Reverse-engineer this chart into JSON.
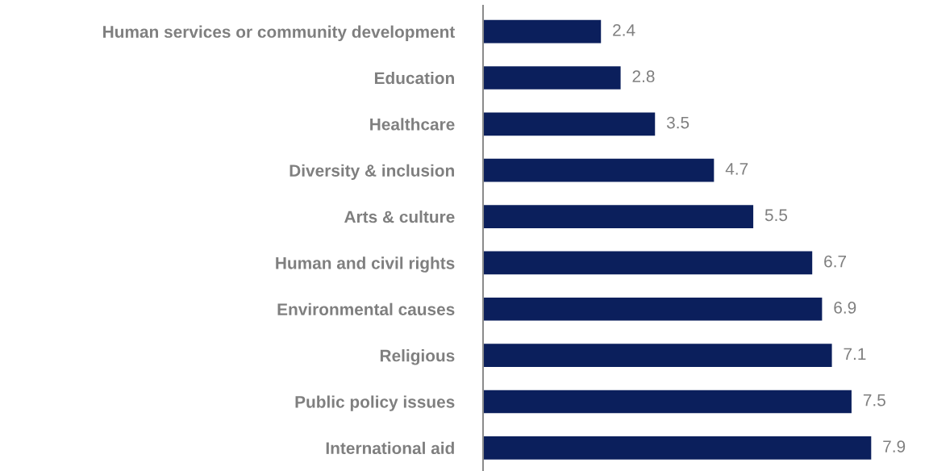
{
  "chart_data": {
    "type": "bar",
    "orientation": "horizontal",
    "categories": [
      "Human services or community development",
      "Education",
      "Healthcare",
      "Diversity & inclusion",
      "Arts & culture",
      "Human and civil rights",
      "Environmental causes",
      "Religious",
      "Public policy issues",
      "International aid"
    ],
    "values": [
      2.4,
      2.8,
      3.5,
      4.7,
      5.5,
      6.7,
      6.9,
      7.1,
      7.5,
      7.9
    ],
    "color": "#0b1f5c",
    "data_labels": true,
    "grid": false,
    "legend": false
  }
}
